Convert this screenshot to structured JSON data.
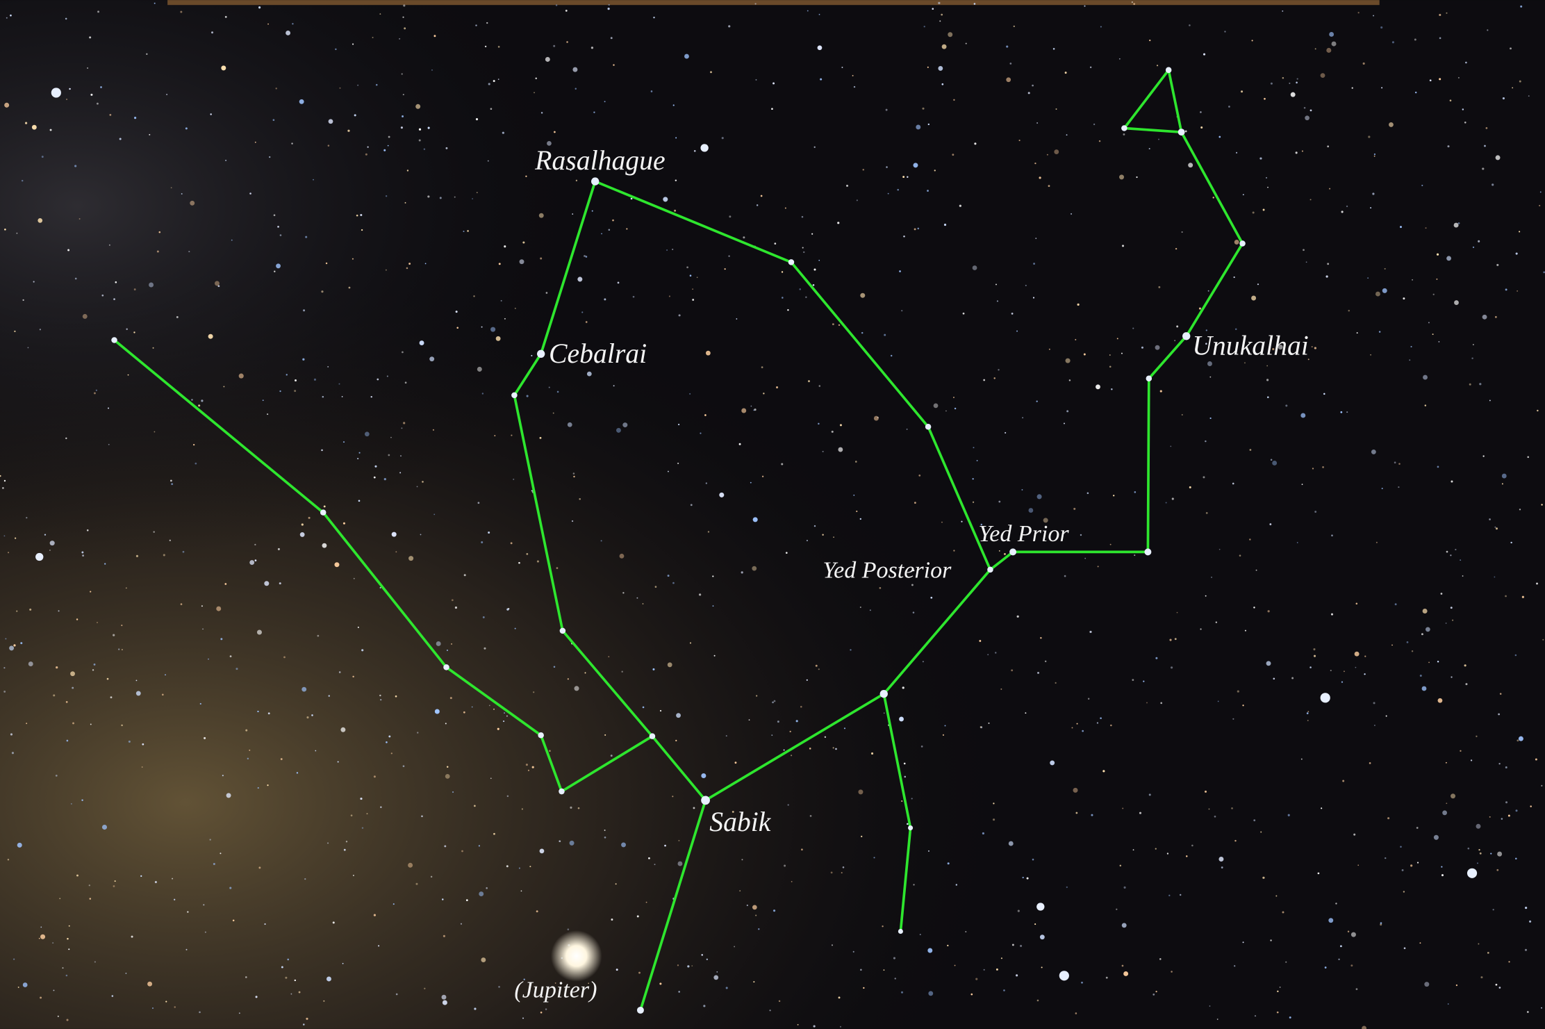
{
  "labels": {
    "rasalhague": "Rasalhague",
    "cebalrai": "Cebalrai",
    "unukalhai": "Unukalhai",
    "yed_prior": "Yed Prior",
    "yed_posterior": "Yed Posterior",
    "sabik": "Sabik",
    "jupiter": "(Jupiter)"
  }
}
